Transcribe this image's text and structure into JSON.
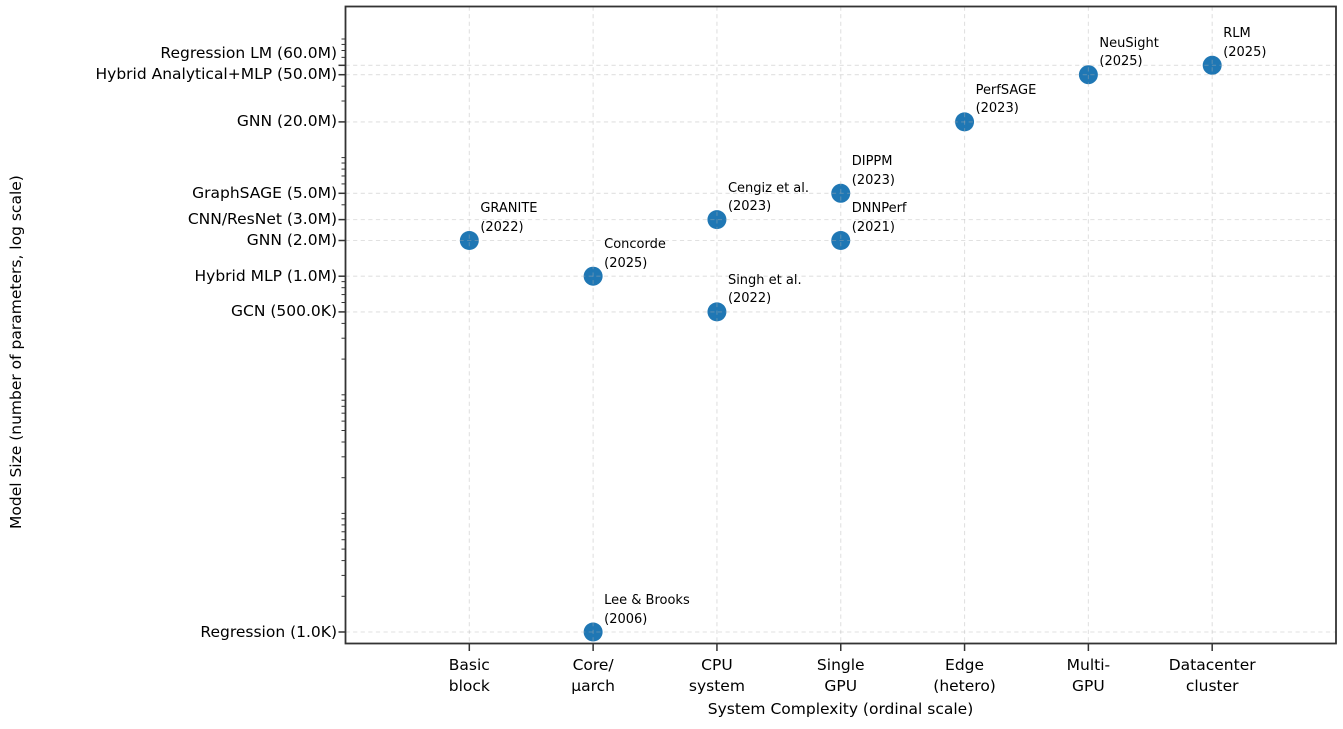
{
  "figure": {
    "background": "#ffffff"
  },
  "chart_data": {
    "type": "scatter",
    "title": "",
    "xlabel": "System Complexity (ordinal scale)",
    "ylabel": "Model Size (number of parameters, log scale)",
    "x_categories": [
      "Basic\nblock",
      "Core/\nμarch",
      "CPU\nsystem",
      "Single\nGPU",
      "Edge\n(hetero)",
      "Multi-\nGPU",
      "Datacenter\ncluster"
    ],
    "y_scale": "log",
    "ylim_log10": [
      2.9,
      8.27
    ],
    "grid": true,
    "legend": false,
    "y_ticks": [
      {
        "label": "Regression LM (60.0M)",
        "value": 60000000
      },
      {
        "label": "Hybrid Analytical+MLP (50.0M)",
        "value": 50000000
      },
      {
        "label": "GNN (20.0M)",
        "value": 20000000
      },
      {
        "label": "GraphSAGE (5.0M)",
        "value": 5000000
      },
      {
        "label": "CNN/ResNet (3.0M)",
        "value": 3000000
      },
      {
        "label": "GNN (2.0M)",
        "value": 2000000
      },
      {
        "label": "Hybrid MLP (1.0M)",
        "value": 1000000
      },
      {
        "label": "GCN (500.0K)",
        "value": 500000
      },
      {
        "label": "Regression (1.0K)",
        "value": 1000
      }
    ],
    "points": [
      {
        "name": "GRANITE",
        "year": "(2022)",
        "x_category": "Basic block",
        "xi": 0,
        "params": 2000000
      },
      {
        "name": "Concorde",
        "year": "(2025)",
        "x_category": "Core/μarch",
        "xi": 1,
        "params": 1000000
      },
      {
        "name": "Lee & Brooks",
        "year": "(2006)",
        "x_category": "Core/μarch",
        "xi": 1,
        "params": 1000
      },
      {
        "name": "Cengiz et al.",
        "year": "(2023)",
        "x_category": "CPU system",
        "xi": 2,
        "params": 3000000
      },
      {
        "name": "Singh et al.",
        "year": "(2022)",
        "x_category": "CPU system",
        "xi": 2,
        "params": 500000
      },
      {
        "name": "DIPPM",
        "year": "(2023)",
        "x_category": "Single GPU",
        "xi": 3,
        "params": 5000000
      },
      {
        "name": "DNNPerf",
        "year": "(2021)",
        "x_category": "Single GPU",
        "xi": 3,
        "params": 2000000
      },
      {
        "name": "PerfSAGE",
        "year": "(2023)",
        "x_category": "Edge (hetero)",
        "xi": 4,
        "params": 20000000
      },
      {
        "name": "NeuSight",
        "year": "(2025)",
        "x_category": "Multi-GPU",
        "xi": 5,
        "params": 50000000
      },
      {
        "name": "RLM",
        "year": "(2025)",
        "x_category": "Datacenter cluster",
        "xi": 6,
        "params": 60000000
      }
    ],
    "colors": {
      "marker": "#1f77b4",
      "grid": "#b0b0b0",
      "spine": "#333333",
      "text": "#000000"
    }
  }
}
